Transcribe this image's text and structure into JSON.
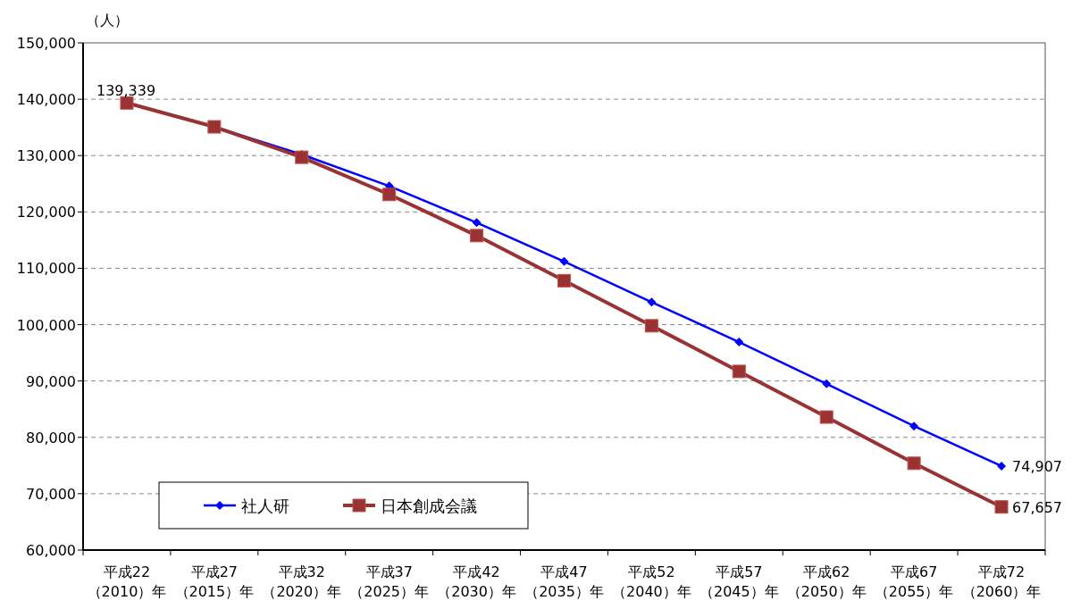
{
  "chart_data": {
    "type": "line",
    "ylabel": "（人）",
    "categories": [
      "平成22（2010）年",
      "平成27（2015）年",
      "平成32（2020）年",
      "平成37（2025）年",
      "平成42（2030）年",
      "平成47（2035）年",
      "平成52（2040）年",
      "平成57（2045）年",
      "平成62（2050）年",
      "平成67（2055）年",
      "平成72（2060）年"
    ],
    "series": [
      {
        "name": "社人研",
        "color": "#0000ff",
        "marker": "diamond",
        "values": [
          139339,
          135100,
          130200,
          124600,
          118100,
          111200,
          104000,
          96900,
          89500,
          82000,
          74907
        ],
        "value_labels": [
          null,
          null,
          null,
          null,
          null,
          null,
          null,
          null,
          null,
          null,
          "74,907"
        ]
      },
      {
        "name": "日本創成会議",
        "color": "#993333",
        "marker": "square",
        "values": [
          139339,
          135100,
          129700,
          123100,
          115800,
          107800,
          99800,
          91700,
          83600,
          75400,
          67657
        ],
        "value_labels": [
          "139,339",
          null,
          null,
          null,
          null,
          null,
          null,
          null,
          null,
          null,
          "67,657"
        ]
      }
    ],
    "ylim": [
      60000,
      150000
    ],
    "yticks": [
      {
        "value": 60000,
        "label": "60,000"
      },
      {
        "value": 70000,
        "label": "70,000"
      },
      {
        "value": 80000,
        "label": "80,000"
      },
      {
        "value": 90000,
        "label": "90,000"
      },
      {
        "value": 100000,
        "label": "100,000"
      },
      {
        "value": 110000,
        "label": "110,000"
      },
      {
        "value": 120000,
        "label": "120,000"
      },
      {
        "value": 130000,
        "label": "130,000"
      },
      {
        "value": 140000,
        "label": "140,000"
      },
      {
        "value": 150000,
        "label": "150,000"
      }
    ],
    "grid": "y",
    "legend": "bottom left"
  }
}
